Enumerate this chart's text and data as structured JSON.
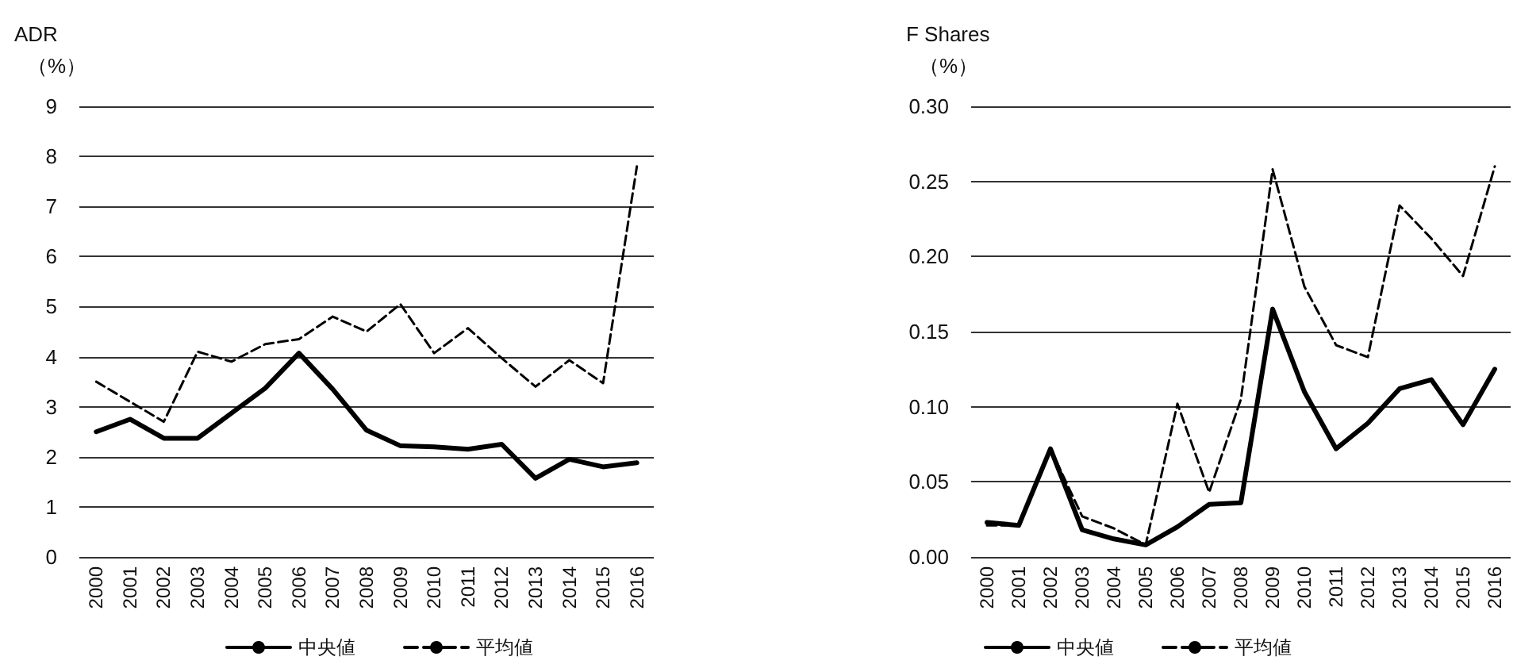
{
  "chart_data": [
    {
      "type": "line",
      "title": "ADR",
      "ylabel": "（%）",
      "categories": [
        "2000",
        "2001",
        "2002",
        "2003",
        "2004",
        "2005",
        "2006",
        "2007",
        "2008",
        "2009",
        "2010",
        "2011",
        "2012",
        "2013",
        "2014",
        "2015",
        "2016"
      ],
      "series": [
        {
          "name": "中央値",
          "color": "#000000",
          "line_style": "solid",
          "values": [
            2.5,
            2.75,
            2.37,
            2.37,
            2.87,
            3.37,
            4.07,
            3.35,
            2.53,
            2.22,
            2.2,
            2.15,
            2.25,
            1.57,
            1.95,
            1.8,
            1.88
          ]
        },
        {
          "name": "平均値",
          "color": "#000000",
          "line_style": "dashed",
          "values": [
            3.5,
            3.1,
            2.7,
            4.1,
            3.9,
            4.25,
            4.35,
            4.8,
            4.5,
            5.05,
            4.07,
            4.57,
            3.97,
            3.4,
            3.93,
            3.47,
            7.8
          ]
        }
      ],
      "ylim": [
        0,
        9
      ],
      "yticks": [
        0,
        1,
        2,
        3,
        4,
        5,
        6,
        7,
        8,
        9
      ],
      "grid": "y",
      "legend": "bottom",
      "marker": "none"
    },
    {
      "type": "line",
      "title": "F Shares",
      "ylabel": "（%）",
      "categories": [
        "2000",
        "2001",
        "2002",
        "2003",
        "2004",
        "2005",
        "2006",
        "2007",
        "2008",
        "2009",
        "2010",
        "2011",
        "2012",
        "2013",
        "2014",
        "2015",
        "2016"
      ],
      "series": [
        {
          "name": "中央値",
          "color": "#000000",
          "line_style": "solid",
          "values": [
            0.023,
            0.021,
            0.072,
            0.018,
            0.012,
            0.008,
            0.02,
            0.035,
            0.036,
            0.165,
            0.11,
            0.072,
            0.089,
            0.112,
            0.118,
            0.088,
            0.125
          ]
        },
        {
          "name": "平均値",
          "color": "#000000",
          "line_style": "dashed",
          "values": [
            0.021,
            0.021,
            0.072,
            0.027,
            0.019,
            0.008,
            0.102,
            0.043,
            0.105,
            0.258,
            0.18,
            0.141,
            0.133,
            0.234,
            0.212,
            0.187,
            0.26
          ]
        }
      ],
      "ylim": [
        0,
        0.3
      ],
      "yticks": [
        {
          "value": 0,
          "label": "0.00"
        },
        {
          "value": 0.05,
          "label": "0.05"
        },
        {
          "value": 0.1,
          "label": "0.10"
        },
        {
          "value": 0.15,
          "label": "0.15"
        },
        {
          "value": 0.2,
          "label": "0.20"
        },
        {
          "value": 0.25,
          "label": "0.25"
        },
        {
          "value": 0.3,
          "label": "0.30"
        }
      ],
      "grid": "y",
      "legend": "bottom",
      "marker": "none"
    }
  ]
}
